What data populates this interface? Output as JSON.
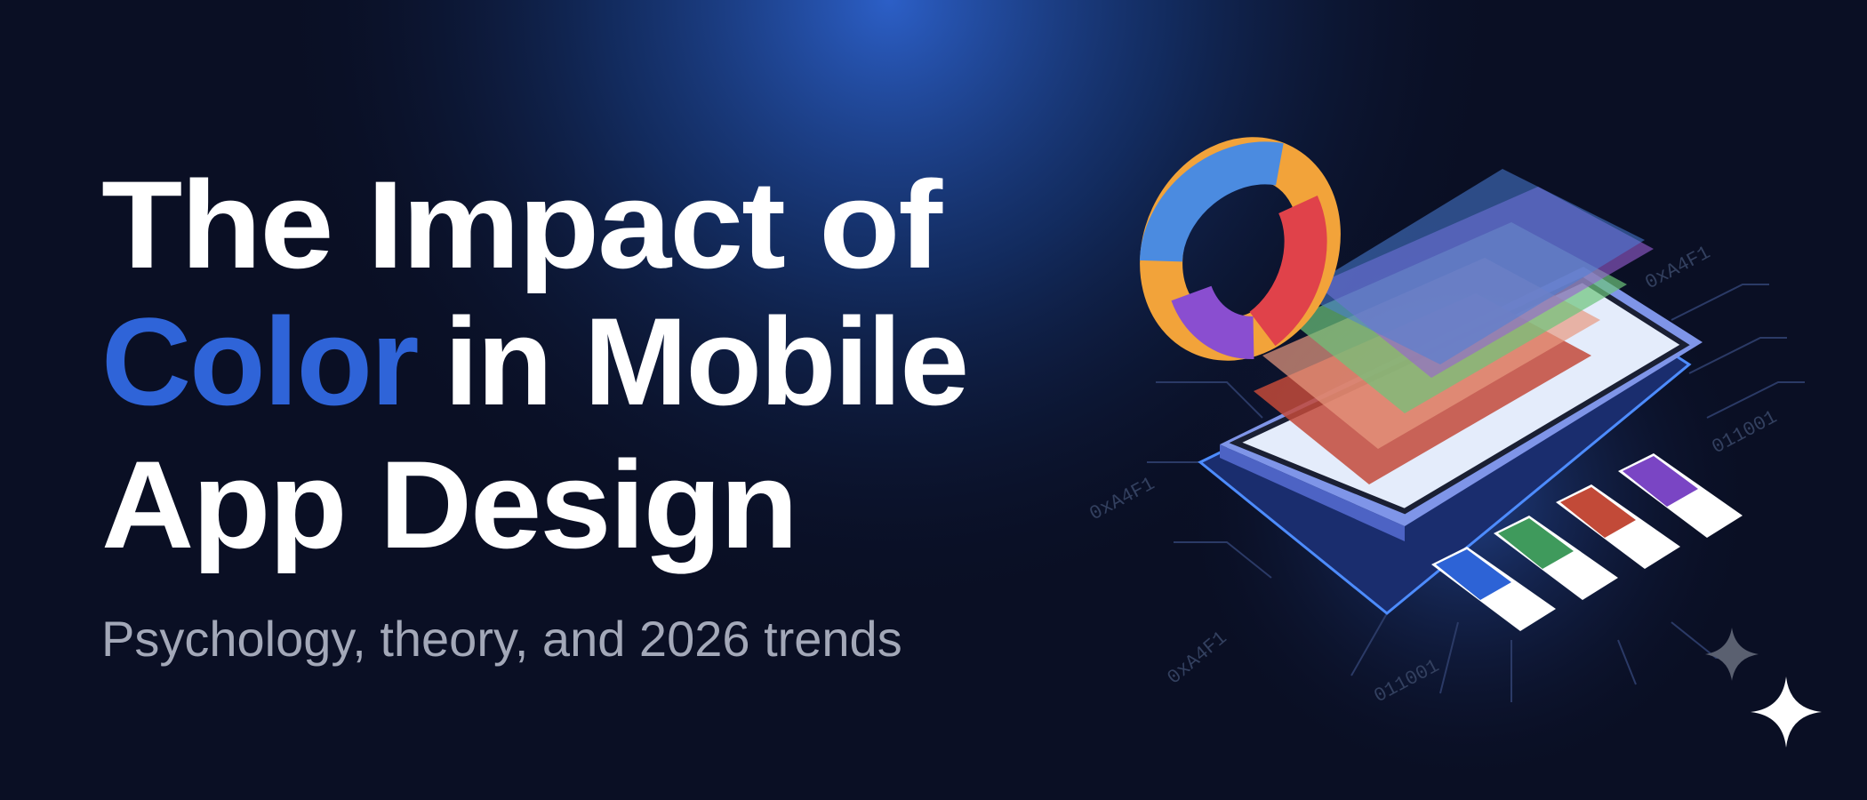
{
  "hero": {
    "title": {
      "line1": "The Impact of",
      "highlight": "Color",
      "line2_rest": "in Mobile",
      "line3": "App Design"
    },
    "subtitle": "Psychology, theory, and 2026 trends"
  },
  "illustration": {
    "code_labels": [
      "0xA4F1",
      "011001",
      "0xA4F1",
      "0xA4F1",
      "011001"
    ]
  }
}
